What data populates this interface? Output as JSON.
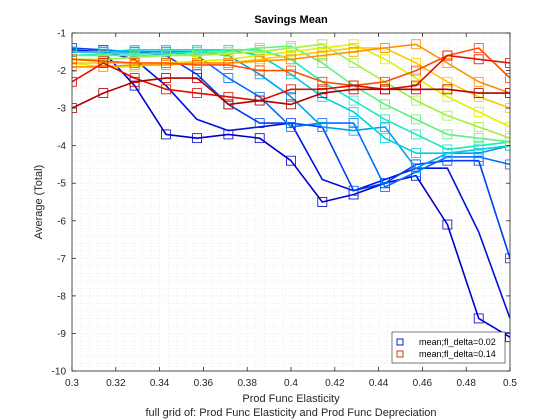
{
  "chart_data": {
    "type": "line",
    "title": "Savings Mean",
    "xlabel": "Prod Func Elasticity",
    "ylabel": "Average (Total)",
    "caption": "full grid of: Prod Func Elasticity and Prod Func Depreciation",
    "xlim": [
      0.3,
      0.5
    ],
    "ylim": [
      -10,
      -1
    ],
    "xticks": [
      "0.3",
      "0.32",
      "0.34",
      "0.36",
      "0.38",
      "0.4",
      "0.42",
      "0.44",
      "0.46",
      "0.48",
      "0.5"
    ],
    "yticks": [
      "-1",
      "-2",
      "-3",
      "-4",
      "-5",
      "-6",
      "-7",
      "-8",
      "-9",
      "-10"
    ],
    "grid": "minor dotted",
    "legend": {
      "placement": "bottom-right",
      "entries": [
        {
          "label": "mean;fl_delta=0.02",
          "color": "#0000cc"
        },
        {
          "label": "mean;fl_delta=0.14",
          "color": "#cc2200"
        }
      ]
    },
    "x": [
      0.3,
      0.3143,
      0.3286,
      0.3429,
      0.3571,
      0.3714,
      0.3857,
      0.4,
      0.4143,
      0.4286,
      0.4429,
      0.4571,
      0.4714,
      0.4857,
      0.5
    ],
    "series": [
      {
        "name": "mean;fl_delta=0.02",
        "color": "#0000cc",
        "marked": true,
        "values": [
          -1.5,
          -1.5,
          -2.4,
          -3.7,
          -3.8,
          -3.7,
          -3.8,
          -4.4,
          -5.5,
          -5.3,
          -5.0,
          -4.8,
          -6.1,
          -8.6,
          -9.1
        ]
      },
      {
        "series_index": 1,
        "color": "#0010e0",
        "marked": false,
        "values": [
          -1.45,
          -1.5,
          -1.7,
          -2.4,
          -3.3,
          -3.6,
          -3.5,
          -3.4,
          -4.9,
          -5.2,
          -4.9,
          -4.6,
          -4.6,
          -6.3,
          -8.6
        ]
      },
      {
        "series_index": 2,
        "color": "#0040f0",
        "marked": true,
        "values": [
          -1.4,
          -1.45,
          -1.5,
          -1.6,
          -2.1,
          -2.9,
          -3.4,
          -3.4,
          -3.5,
          -5.2,
          -5.0,
          -4.5,
          -4.4,
          -4.4,
          -7.0
        ]
      },
      {
        "series_index": 3,
        "color": "#0070ff",
        "marked": true,
        "values": [
          -1.5,
          -1.5,
          -1.5,
          -1.5,
          -1.6,
          -2.2,
          -2.7,
          -3.5,
          -3.4,
          -3.4,
          -5.1,
          -4.7,
          -4.3,
          -4.3,
          -4.5
        ]
      },
      {
        "series_index": 4,
        "color": "#00a0f0",
        "marked": true,
        "values": [
          -1.5,
          -1.5,
          -1.5,
          -1.5,
          -1.5,
          -1.6,
          -2.1,
          -2.7,
          -3.5,
          -3.6,
          -3.5,
          -4.6,
          -4.2,
          -4.2,
          -4.0
        ]
      },
      {
        "series_index": 5,
        "color": "#00d0e0",
        "marked": true,
        "values": [
          -1.5,
          -1.5,
          -1.45,
          -1.45,
          -1.45,
          -1.45,
          -1.6,
          -2.1,
          -2.7,
          -3.1,
          -3.8,
          -4.2,
          -4.2,
          -4.1,
          -4.0
        ]
      },
      {
        "series_index": 6,
        "color": "#20e8c0",
        "marked": true,
        "values": [
          -1.6,
          -1.55,
          -1.55,
          -1.55,
          -1.5,
          -1.45,
          -1.45,
          -1.7,
          -2.3,
          -2.8,
          -3.3,
          -3.7,
          -4.1,
          -4.0,
          -3.9
        ]
      },
      {
        "series_index": 7,
        "color": "#60f080",
        "marked": true,
        "values": [
          -1.6,
          -1.6,
          -1.6,
          -1.6,
          -1.55,
          -1.5,
          -1.4,
          -1.35,
          -1.8,
          -2.4,
          -2.9,
          -3.3,
          -3.7,
          -3.8,
          -3.9
        ]
      },
      {
        "series_index": 8,
        "color": "#a0f040",
        "marked": true,
        "values": [
          -1.7,
          -1.7,
          -1.65,
          -1.6,
          -1.6,
          -1.55,
          -1.5,
          -1.4,
          -1.3,
          -1.8,
          -2.3,
          -2.8,
          -3.2,
          -3.5,
          -3.8
        ]
      },
      {
        "series_index": 9,
        "color": "#e0f000",
        "marked": true,
        "values": [
          -1.8,
          -1.9,
          -1.9,
          -1.8,
          -1.75,
          -1.7,
          -1.6,
          -1.5,
          -1.4,
          -1.3,
          -1.7,
          -2.2,
          -2.7,
          -3.1,
          -3.5
        ]
      },
      {
        "series_index": 10,
        "color": "#ffc800",
        "marked": true,
        "values": [
          -1.8,
          -1.8,
          -1.8,
          -1.8,
          -1.8,
          -1.8,
          -1.7,
          -1.6,
          -1.5,
          -1.4,
          -1.4,
          -1.8,
          -2.3,
          -2.7,
          -3.0
        ]
      },
      {
        "series_index": 11,
        "color": "#ff9000",
        "marked": true,
        "values": [
          -1.9,
          -1.9,
          -1.85,
          -1.85,
          -1.8,
          -1.8,
          -1.75,
          -1.7,
          -1.6,
          -1.5,
          -1.4,
          -1.3,
          -1.8,
          -2.3,
          -2.6
        ]
      },
      {
        "series_index": 12,
        "color": "#ff5000",
        "marked": true,
        "values": [
          -1.7,
          -1.75,
          -1.8,
          -1.8,
          -1.85,
          -1.85,
          -2.0,
          -2.0,
          -2.3,
          -2.4,
          -2.3,
          -2.0,
          -1.6,
          -1.4,
          -2.2
        ]
      },
      {
        "series_index": 13,
        "color": "#e01000",
        "marked": true,
        "values": [
          -2.3,
          -1.8,
          -2.2,
          -2.5,
          -2.6,
          -2.7,
          -2.8,
          -2.5,
          -2.5,
          -2.4,
          -2.5,
          -2.4,
          -1.6,
          -1.7,
          -1.8
        ]
      },
      {
        "name": "mean;fl_delta=0.14",
        "color": "#b00000",
        "marked": true,
        "values": [
          -3.0,
          -2.6,
          -2.3,
          -2.2,
          -2.2,
          -2.9,
          -2.8,
          -2.9,
          -2.6,
          -2.5,
          -2.5,
          -2.5,
          -2.5,
          -2.6,
          -2.6
        ]
      }
    ]
  }
}
